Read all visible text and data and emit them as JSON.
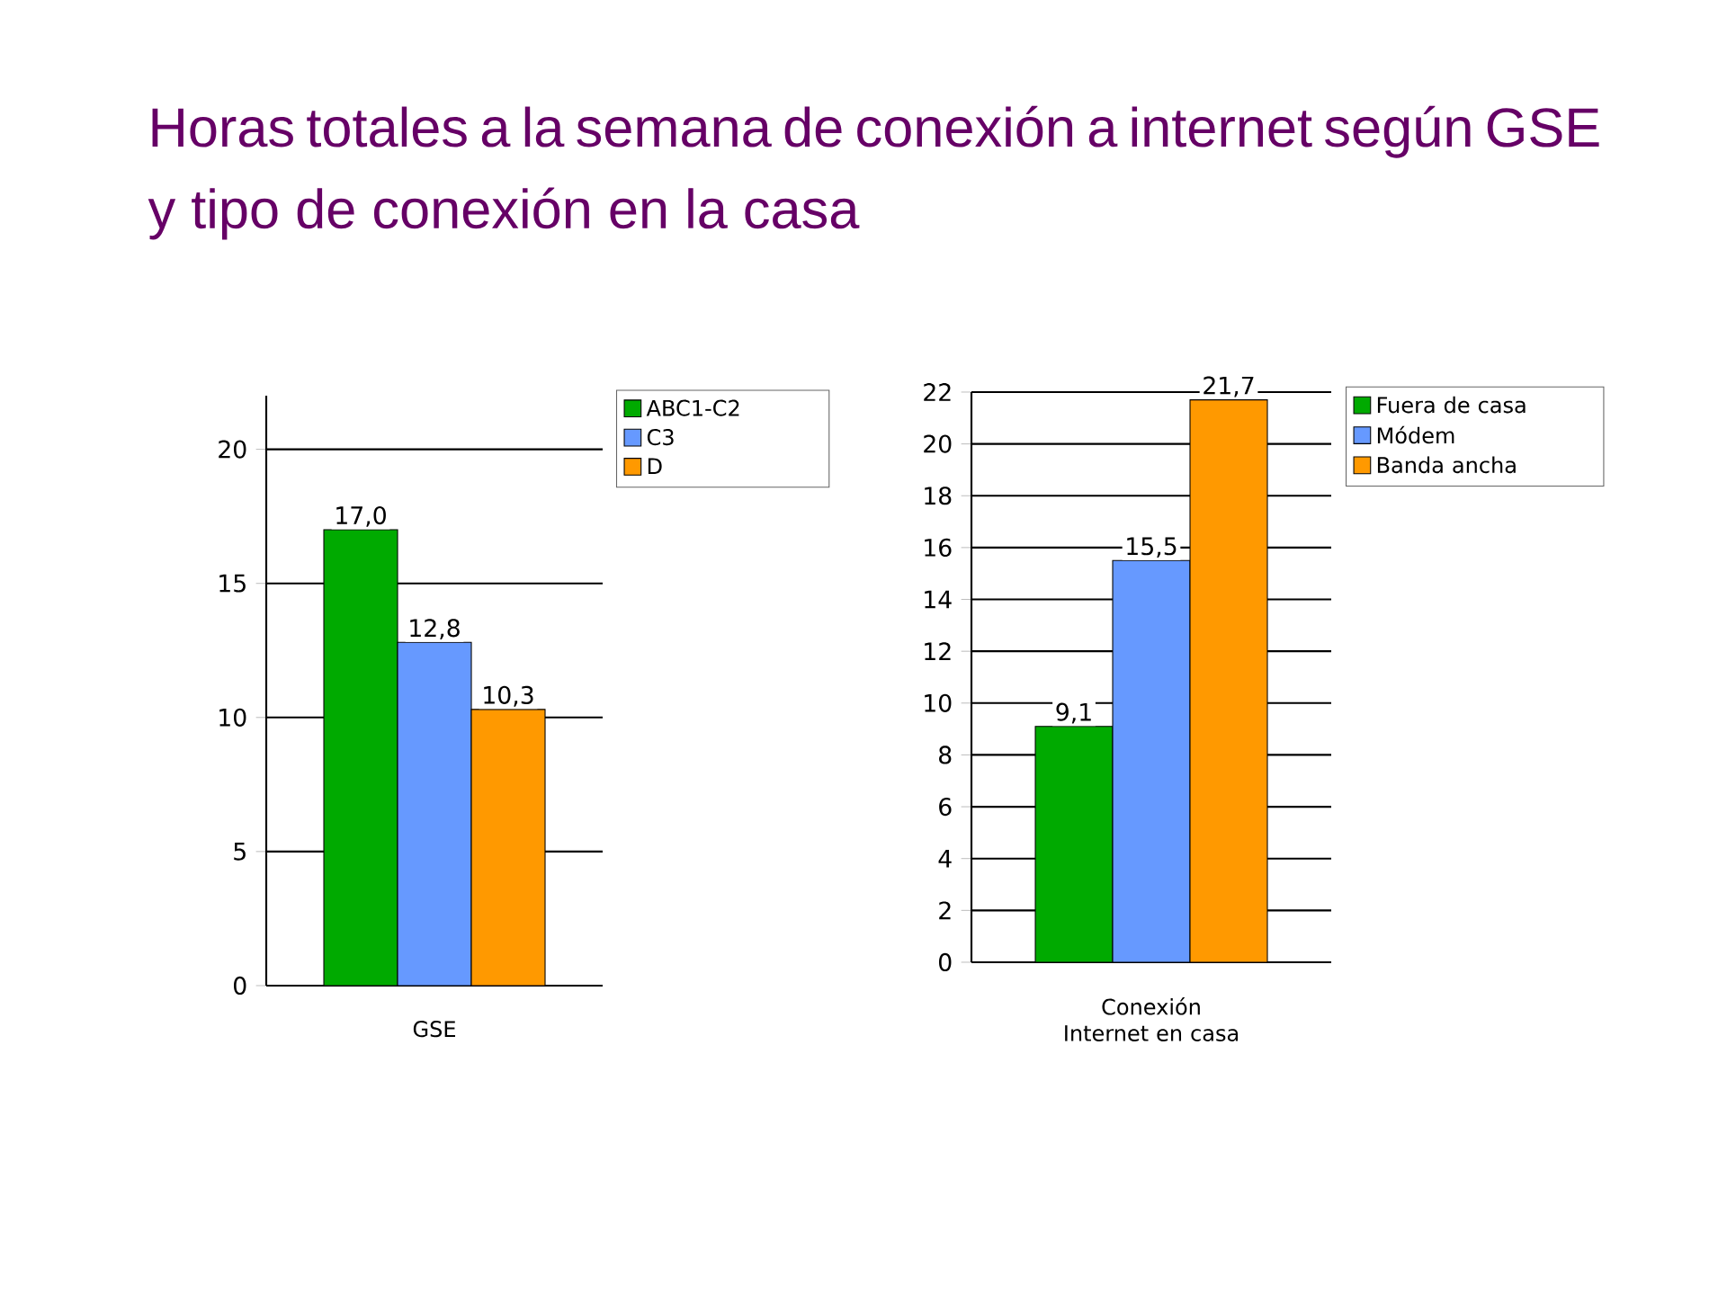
{
  "chart_data": [
    {
      "type": "bar",
      "title": "Horas totales a la semana de conexión a internet según GSE y tipo de conexión en la casa",
      "xlabel": "GSE",
      "categories": [
        null,
        null,
        null
      ],
      "ylim": [
        0,
        22
      ],
      "yticks": [
        0,
        5,
        10,
        15,
        20
      ],
      "grid": "y",
      "legend": "top right",
      "series": [
        {
          "name": "ABC1-C2",
          "color": "#00aa00",
          "values": [
            17.0,
            null,
            null
          ],
          "value_labels": [
            "17,0",
            null,
            null
          ]
        },
        {
          "name": "C3",
          "color": "#6699ff",
          "values": [
            null,
            12.8,
            null
          ],
          "value_labels": [
            null,
            "12,8",
            null
          ]
        },
        {
          "name": "D",
          "color": "#ff9900",
          "values": [
            null,
            null,
            10.3
          ],
          "value_labels": [
            null,
            null,
            "10,3"
          ]
        }
      ]
    },
    {
      "type": "bar",
      "xlabel": "Conexión Internet en casa",
      "categories": [
        null,
        null,
        null
      ],
      "ylim": [
        0,
        22
      ],
      "yticks": [
        0,
        2,
        4,
        6,
        8,
        10,
        12,
        14,
        16,
        18,
        20,
        22
      ],
      "grid": "y",
      "legend": "top right",
      "series": [
        {
          "name": "Fuera de casa",
          "color": "#00aa00",
          "values": [
            9.1,
            null,
            null
          ],
          "value_labels": [
            "9,1",
            null,
            null
          ]
        },
        {
          "name": "Módem",
          "color": "#6699ff",
          "values": [
            null,
            15.5,
            null
          ],
          "value_labels": [
            null,
            "15,5",
            null
          ]
        },
        {
          "name": "Banda ancha",
          "color": "#ff9900",
          "values": [
            null,
            null,
            21.7
          ],
          "value_labels": [
            null,
            null,
            "21,7"
          ]
        }
      ]
    }
  ]
}
